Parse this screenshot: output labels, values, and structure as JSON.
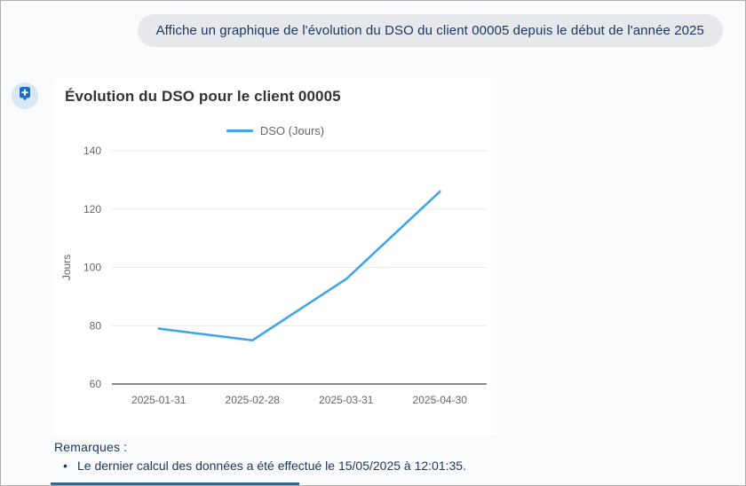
{
  "message": {
    "text": "Affiche un graphique de l'évolution du DSO du client 00005 depuis le début de l'année 2025"
  },
  "assistant": {
    "avatar_icon": "plus-badge-icon"
  },
  "chart_data": {
    "type": "line",
    "title": "Évolution du DSO pour le client 00005",
    "categories": [
      "2025-01-31",
      "2025-02-28",
      "2025-03-31",
      "2025-04-30"
    ],
    "series": [
      {
        "name": "DSO (Jours)",
        "values": [
          79,
          75,
          96,
          126
        ],
        "color": "#41a5ec"
      }
    ],
    "xlabel": "",
    "ylabel": "Jours",
    "ylim": [
      60,
      140
    ],
    "ytick_step": 20,
    "grid": true,
    "legend_position": "top"
  },
  "remarks": {
    "heading": "Remarques :",
    "items": [
      "Le dernier calcul des données a été effectué le 15/05/2025 à 12:01:35."
    ]
  },
  "colors": {
    "line": "#41a5ec",
    "navy_text": "#1c3860",
    "bubble_bg": "#e6e8ec",
    "avatar_circle_bg": "#d9e6f6",
    "avatar_badge": "#1a6ec7",
    "grid_line": "#e9e9e9",
    "axis_line": "#606060",
    "tick_text": "#666666",
    "cutoff_bar": "#35648e"
  }
}
